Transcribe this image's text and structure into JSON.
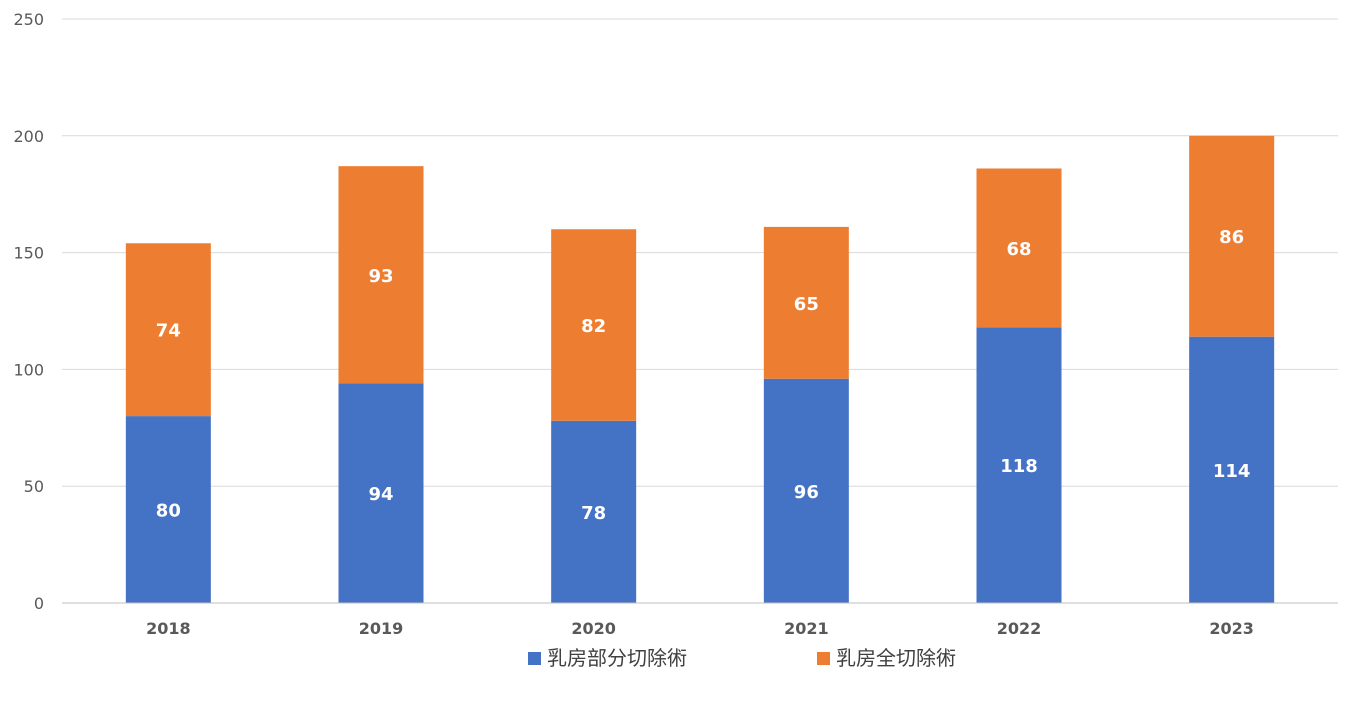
{
  "chart_data": {
    "type": "bar",
    "stacked": true,
    "categories": [
      "2018",
      "2019",
      "2020",
      "2021",
      "2022",
      "2023"
    ],
    "series": [
      {
        "name": "乳房部分切除術",
        "color": "#4472C4",
        "values": [
          80,
          94,
          78,
          96,
          118,
          114
        ]
      },
      {
        "name": "乳房全切除術",
        "color": "#ED7D31",
        "values": [
          74,
          93,
          82,
          65,
          68,
          86
        ]
      }
    ],
    "ylim": [
      0,
      250
    ],
    "yticks": [
      "0",
      "50",
      "100",
      "150",
      "200",
      "250"
    ],
    "grid": true,
    "legend_position": "bottom",
    "data_labels": true
  }
}
